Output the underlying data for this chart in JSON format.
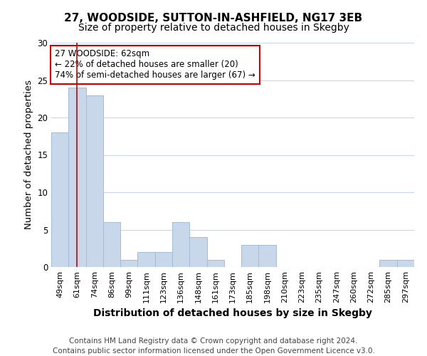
{
  "title1": "27, WOODSIDE, SUTTON-IN-ASHFIELD, NG17 3EB",
  "title2": "Size of property relative to detached houses in Skegby",
  "xlabel": "Distribution of detached houses by size in Skegby",
  "ylabel": "Number of detached properties",
  "categories": [
    "49sqm",
    "61sqm",
    "74sqm",
    "86sqm",
    "99sqm",
    "111sqm",
    "123sqm",
    "136sqm",
    "148sqm",
    "161sqm",
    "173sqm",
    "185sqm",
    "198sqm",
    "210sqm",
    "223sqm",
    "235sqm",
    "247sqm",
    "260sqm",
    "272sqm",
    "285sqm",
    "297sqm"
  ],
  "values": [
    18,
    24,
    23,
    6,
    1,
    2,
    2,
    6,
    4,
    1,
    0,
    3,
    3,
    0,
    0,
    0,
    0,
    0,
    0,
    1,
    1
  ],
  "bar_color": "#c8d8ea",
  "bar_edge_color": "#a0bcd4",
  "vline_x": 1.0,
  "vline_color": "#cc0000",
  "annotation_text": "27 WOODSIDE: 62sqm\n← 22% of detached houses are smaller (20)\n74% of semi-detached houses are larger (67) →",
  "annotation_box_color": "#ffffff",
  "annotation_box_edge": "#cc0000",
  "footnote1": "Contains HM Land Registry data © Crown copyright and database right 2024.",
  "footnote2": "Contains public sector information licensed under the Open Government Licence v3.0.",
  "ylim": [
    0,
    30
  ],
  "background_color": "#ffffff",
  "plot_bg_color": "#ffffff",
  "grid_color": "#c8d8ea",
  "title_fontsize": 11,
  "subtitle_fontsize": 10,
  "axis_label_fontsize": 9.5,
  "tick_fontsize": 8,
  "footnote_fontsize": 7.5,
  "annotation_fontsize": 8.5
}
